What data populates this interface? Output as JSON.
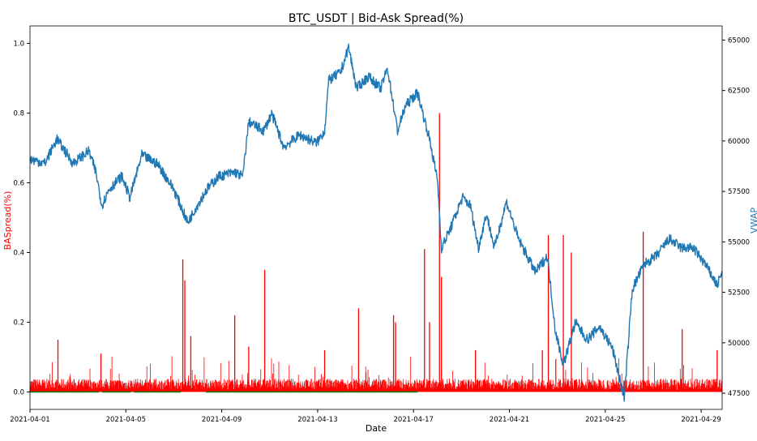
{
  "chart_data": {
    "type": "line",
    "title": "BTC_USDT | Bid-Ask Spread(%)",
    "xlabel": "Date",
    "ylabel_left": "BASpread(%)",
    "ylabel_right": "VWAP",
    "xlim": [
      "2021-04-01T00:00",
      "2021-04-29T21:00"
    ],
    "x_ticks": [
      "2021-04-01",
      "2021-04-05",
      "2021-04-09",
      "2021-04-13",
      "2021-04-17",
      "2021-04-21",
      "2021-04-25",
      "2021-04-29"
    ],
    "ylim_left": [
      -0.05,
      1.05
    ],
    "y_ticks_left": [
      "0.0",
      "0.2",
      "0.4",
      "0.6",
      "0.8",
      "1.0"
    ],
    "ylim_right": [
      46700,
      65700
    ],
    "y_ticks_right": [
      "47500",
      "50000",
      "52500",
      "55000",
      "57500",
      "60000",
      "62500",
      "65000"
    ],
    "grid": false,
    "colors": {
      "spread": "#ff0000",
      "vwap": "#1f77b4",
      "zero": "#008000",
      "left_label": "#ff0000",
      "right_label": "#1f77b4"
    },
    "series": [
      {
        "key": "vwap",
        "axis": "right",
        "points": [
          [
            "2021-04-01T00:00",
            59100
          ],
          [
            "2021-04-01T15:00",
            58900
          ],
          [
            "2021-04-02T03:00",
            60100
          ],
          [
            "2021-04-02T19:00",
            58900
          ],
          [
            "2021-04-03T11:00",
            59500
          ],
          [
            "2021-04-03T18:00",
            58450
          ],
          [
            "2021-04-04T00:00",
            56800
          ],
          [
            "2021-04-04T07:00",
            57600
          ],
          [
            "2021-04-04T20:00",
            58250
          ],
          [
            "2021-04-05T04:00",
            57200
          ],
          [
            "2021-04-05T16:00",
            59300
          ],
          [
            "2021-04-06T08:00",
            58850
          ],
          [
            "2021-04-07T00:00",
            57600
          ],
          [
            "2021-04-07T14:00",
            55950
          ],
          [
            "2021-04-07T21:00",
            56600
          ],
          [
            "2021-04-08T09:00",
            57600
          ],
          [
            "2021-04-08T21:00",
            58250
          ],
          [
            "2021-04-09T13:00",
            58450
          ],
          [
            "2021-04-09T21:00",
            58250
          ],
          [
            "2021-04-10T03:00",
            60950
          ],
          [
            "2021-04-10T18:00",
            60500
          ],
          [
            "2021-04-11T02:00",
            61350
          ],
          [
            "2021-04-11T14:00",
            59700
          ],
          [
            "2021-04-12T06:00",
            60300
          ],
          [
            "2021-04-12T23:00",
            59900
          ],
          [
            "2021-04-13T07:00",
            60500
          ],
          [
            "2021-04-13T11:00",
            63000
          ],
          [
            "2021-04-13T23:00",
            63400
          ],
          [
            "2021-04-14T07:00",
            64650
          ],
          [
            "2021-04-14T15:00",
            62600
          ],
          [
            "2021-04-15T03:00",
            63200
          ],
          [
            "2021-04-15T15:00",
            62600
          ],
          [
            "2021-04-15T22:00",
            63600
          ],
          [
            "2021-04-16T08:00",
            60500
          ],
          [
            "2021-04-16T16:00",
            61750
          ],
          [
            "2021-04-17T04:00",
            62400
          ],
          [
            "2021-04-17T16:00",
            60100
          ],
          [
            "2021-04-18T00:00",
            58050
          ],
          [
            "2021-04-18T04:00",
            54700
          ],
          [
            "2021-04-18T12:00",
            55550
          ],
          [
            "2021-04-19T01:00",
            57200
          ],
          [
            "2021-04-19T09:00",
            56800
          ],
          [
            "2021-04-19T17:00",
            54700
          ],
          [
            "2021-04-20T01:00",
            56400
          ],
          [
            "2021-04-20T09:00",
            54700
          ],
          [
            "2021-04-20T21:00",
            57000
          ],
          [
            "2021-04-21T09:00",
            55150
          ],
          [
            "2021-04-22T02:00",
            53500
          ],
          [
            "2021-04-22T14:00",
            54300
          ],
          [
            "2021-04-22T22:00",
            50600
          ],
          [
            "2021-04-23T06:00",
            48900
          ],
          [
            "2021-04-23T18:00",
            51000
          ],
          [
            "2021-04-24T06:00",
            50150
          ],
          [
            "2021-04-24T18:00",
            50800
          ],
          [
            "2021-04-25T07:00",
            49750
          ],
          [
            "2021-04-25T19:00",
            47250
          ],
          [
            "2021-04-26T03:00",
            52650
          ],
          [
            "2021-04-26T15:00",
            53900
          ],
          [
            "2021-04-27T03:00",
            54300
          ],
          [
            "2021-04-27T16:00",
            55150
          ],
          [
            "2021-04-28T04:00",
            54700
          ],
          [
            "2021-04-28T16:00",
            54700
          ],
          [
            "2021-04-29T04:00",
            53900
          ],
          [
            "2021-04-29T16:00",
            52850
          ],
          [
            "2021-04-29T21:00",
            53500
          ]
        ]
      },
      {
        "key": "spread",
        "axis": "left",
        "baseline": 0.02,
        "spikes": [
          [
            "2021-04-02T04:00",
            0.15
          ],
          [
            "2021-04-03T23:00",
            0.11
          ],
          [
            "2021-04-07T09:00",
            0.38
          ],
          [
            "2021-04-07T11:00",
            0.32
          ],
          [
            "2021-04-07T17:00",
            0.16
          ],
          [
            "2021-04-09T13:00",
            0.22
          ],
          [
            "2021-04-10T03:00",
            0.13
          ],
          [
            "2021-04-10T19:00",
            0.35
          ],
          [
            "2021-04-13T07:00",
            0.12
          ],
          [
            "2021-04-14T17:00",
            0.24
          ],
          [
            "2021-04-16T04:00",
            0.22
          ],
          [
            "2021-04-16T06:00",
            0.2
          ],
          [
            "2021-04-17T11:00",
            0.41
          ],
          [
            "2021-04-17T16:00",
            0.2
          ],
          [
            "2021-04-18T02:00",
            0.8
          ],
          [
            "2021-04-18T04:00",
            0.33
          ],
          [
            "2021-04-19T14:00",
            0.12
          ],
          [
            "2021-04-22T09:00",
            0.12
          ],
          [
            "2021-04-22T15:00",
            0.45
          ],
          [
            "2021-04-23T06:00",
            0.45
          ],
          [
            "2021-04-23T14:00",
            0.4
          ],
          [
            "2021-04-26T14:00",
            0.46
          ],
          [
            "2021-04-28T05:00",
            0.18
          ],
          [
            "2021-04-29T16:00",
            0.12
          ]
        ]
      },
      {
        "key": "zero",
        "axis": "left",
        "segments": [
          [
            "2021-04-01T00:00",
            "2021-04-03T21:00"
          ],
          [
            "2021-04-04T00:00",
            "2021-04-05T05:00"
          ],
          [
            "2021-04-05T08:00",
            "2021-04-07T07:00"
          ],
          [
            "2021-04-08T08:00",
            "2021-04-17T04:00"
          ]
        ]
      }
    ]
  }
}
